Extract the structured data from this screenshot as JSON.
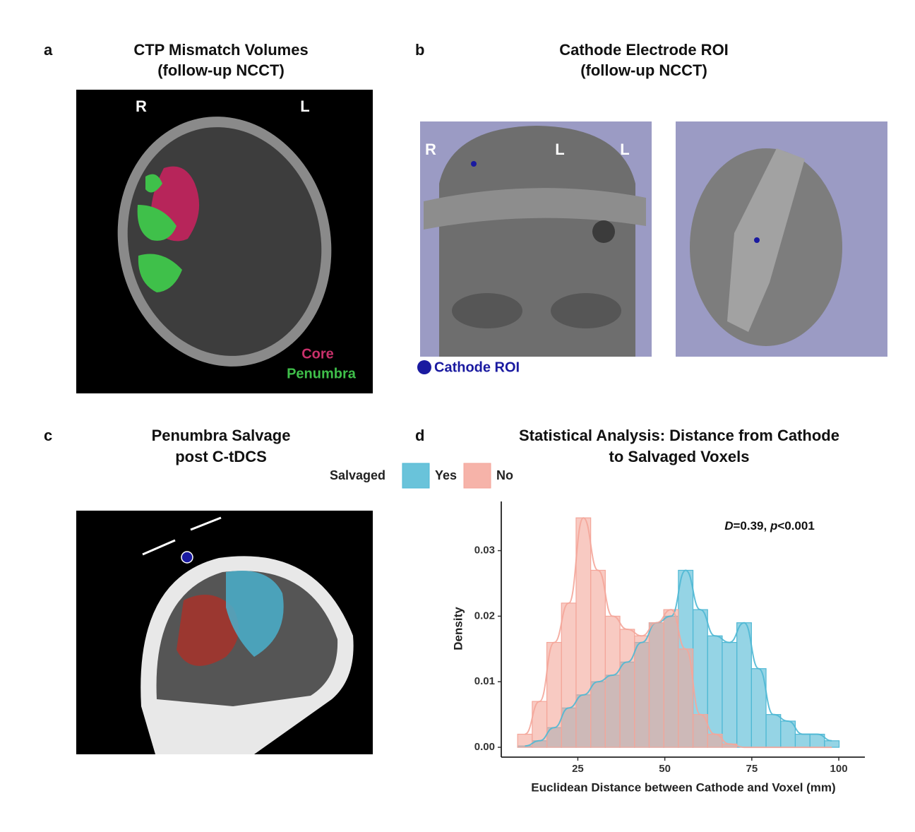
{
  "panels": [
    {
      "label": "a",
      "title": [
        "CTP Mismatch Volumes",
        "(follow-up NCCT)"
      ],
      "image_labels": [
        "R",
        "L"
      ],
      "legend": [
        "Core",
        "Penumbra"
      ]
    },
    {
      "label": "b",
      "title": [
        "Cathode Electrode ROI",
        "(follow-up NCCT)"
      ],
      "image_labels": [
        "R",
        "L",
        "L"
      ],
      "legend": [
        "Cathode ROI"
      ]
    },
    {
      "label": "c",
      "title": [
        "Penumbra Salvage",
        "post C-tDCS"
      ]
    },
    {
      "label": "d"
    }
  ],
  "chart_data": {
    "type": "histogram",
    "title": [
      "Statistical Analysis: Distance from Cathode",
      "to Salvaged Voxels"
    ],
    "legend_title": "Salvaged",
    "annotation": [
      "D",
      "=0.39, ",
      "p",
      "<0.001"
    ],
    "x_label": "Euclidean Distance between Cathode and Voxel (mm)",
    "y_label": "Density",
    "bins": [
      7.7,
      11.9,
      16.1,
      20.3,
      24.5,
      28.7,
      32.9,
      37.1,
      41.3,
      45.5,
      49.7,
      53.9,
      58.1,
      62.3,
      66.5,
      70.7,
      74.9,
      79.1,
      83.3,
      87.5,
      91.7,
      95.9,
      100.1
    ],
    "series": [
      {
        "name": "Yes",
        "color": "#4fb8d4",
        "values": [
          0.0002,
          0.001,
          0.003,
          0.006,
          0.008,
          0.01,
          0.011,
          0.013,
          0.016,
          0.019,
          0.02,
          0.027,
          0.021,
          0.017,
          0.016,
          0.019,
          0.012,
          0.005,
          0.004,
          0.002,
          0.002,
          0.001
        ]
      },
      {
        "name": "No",
        "color": "#f4a69a",
        "values": [
          0.002,
          0.007,
          0.016,
          0.022,
          0.035,
          0.027,
          0.02,
          0.018,
          0.017,
          0.019,
          0.021,
          0.015,
          0.005,
          0.002,
          0.0005,
          0,
          0,
          0,
          0,
          0,
          0,
          0
        ]
      }
    ],
    "xlim": [
      3,
      107.5
    ],
    "ylim": [
      -0.0015,
      0.0375
    ],
    "xticks": [
      25,
      50,
      75,
      100
    ],
    "yticks": [
      {
        "value": 0,
        "label": "0.00"
      },
      {
        "value": 0.01,
        "label": "0.01"
      },
      {
        "value": 0.02,
        "label": "0.02"
      },
      {
        "value": 0.03,
        "label": "0.03"
      }
    ],
    "legend_position": "top"
  }
}
